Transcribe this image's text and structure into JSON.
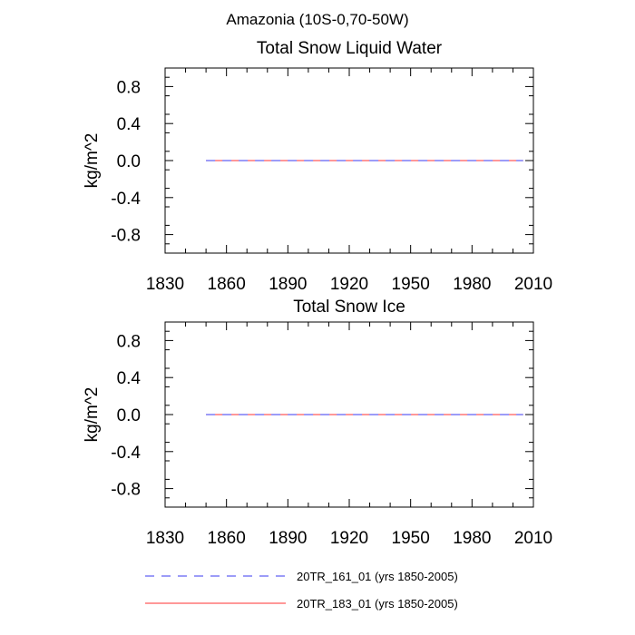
{
  "figure_title": "Amazonia (10S-0,70-50W)",
  "colors": {
    "series_1": "#3a3af0",
    "series_2": "#ff3030",
    "axis": "#000000"
  },
  "legend": {
    "items": [
      {
        "label": "20TR_161_01 (yrs 1850-2005)",
        "style": "dashed",
        "color": "#3a3af0"
      },
      {
        "label": "20TR_183_01 (yrs 1850-2005)",
        "style": "solid",
        "color": "#ff3030"
      }
    ]
  },
  "chart_data": [
    {
      "type": "line",
      "title": "Total Snow Liquid Water",
      "xlabel": "",
      "ylabel": "kg/m^2",
      "xlim": [
        1830,
        2010
      ],
      "ylim": [
        -1.0,
        1.0
      ],
      "x_ticks": [
        "1830",
        "1860",
        "1890",
        "1920",
        "1950",
        "1980",
        "2010"
      ],
      "y_ticks": [
        "0.8",
        "0.4",
        "0.0",
        "-0.4",
        "-0.8"
      ],
      "grid": false,
      "legend_position": "bottom",
      "series": [
        {
          "name": "20TR_161_01 (yrs 1850-2005)",
          "x": [
            1850,
            2005
          ],
          "y": [
            0,
            0
          ]
        },
        {
          "name": "20TR_183_01 (yrs 1850-2005)",
          "x": [
            1850,
            2005
          ],
          "y": [
            0,
            0
          ]
        }
      ]
    },
    {
      "type": "line",
      "title": "Total Snow Ice",
      "xlabel": "",
      "ylabel": "kg/m^2",
      "xlim": [
        1830,
        2010
      ],
      "ylim": [
        -1.0,
        1.0
      ],
      "x_ticks": [
        "1830",
        "1860",
        "1890",
        "1920",
        "1950",
        "1980",
        "2010"
      ],
      "y_ticks": [
        "0.8",
        "0.4",
        "0.0",
        "-0.4",
        "-0.8"
      ],
      "grid": false,
      "legend_position": "bottom",
      "series": [
        {
          "name": "20TR_161_01 (yrs 1850-2005)",
          "x": [
            1850,
            2005
          ],
          "y": [
            0,
            0
          ]
        },
        {
          "name": "20TR_183_01 (yrs 1850-2005)",
          "x": [
            1850,
            2005
          ],
          "y": [
            0,
            0
          ]
        }
      ]
    }
  ]
}
